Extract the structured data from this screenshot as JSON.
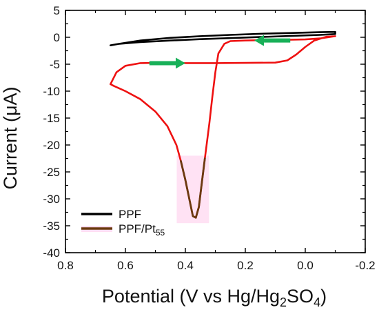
{
  "chart_data": {
    "type": "line",
    "xlabel": {
      "text": "Potential (V vs Hg/Hg",
      "sub1": "2",
      "mid": "SO",
      "sub2": "4",
      "end": ")"
    },
    "ylabel": "Current (μA)",
    "xlim": [
      0.8,
      -0.2
    ],
    "ylim": [
      -40,
      5
    ],
    "x_reversed": true,
    "x_ticks": [
      0.8,
      0.6,
      0.4,
      0.2,
      0.0,
      -0.2
    ],
    "x_tick_labels": [
      "0.8",
      "0.6",
      "0.4",
      "0.2",
      "0.0",
      "-0.2"
    ],
    "y_ticks": [
      5,
      0,
      -5,
      -10,
      -15,
      -20,
      -25,
      -30,
      -35,
      -40
    ],
    "y_tick_labels": [
      "5",
      "0",
      "-5",
      "-10",
      "-15",
      "-20",
      "-25",
      "-30",
      "-35",
      "-40"
    ],
    "grid": false,
    "legend_position": "bottom-left",
    "series": [
      {
        "name": "PPF",
        "color": "#000000",
        "points": [
          [
            0.65,
            -1.5
          ],
          [
            0.62,
            -1.2
          ],
          [
            0.55,
            -0.6
          ],
          [
            0.45,
            -0.1
          ],
          [
            0.35,
            0.2
          ],
          [
            0.25,
            0.45
          ],
          [
            0.15,
            0.65
          ],
          [
            0.05,
            0.8
          ],
          [
            -0.05,
            0.95
          ],
          [
            -0.1,
            1.0
          ],
          [
            -0.1,
            0.6
          ],
          [
            -0.05,
            0.45
          ],
          [
            0.05,
            0.25
          ],
          [
            0.15,
            0.05
          ],
          [
            0.25,
            -0.15
          ],
          [
            0.35,
            -0.35
          ],
          [
            0.45,
            -0.6
          ],
          [
            0.55,
            -0.9
          ],
          [
            0.62,
            -1.2
          ],
          [
            0.65,
            -1.5
          ]
        ]
      },
      {
        "name": "PPF/Pt",
        "name_sub": "55",
        "color": "#ee1111",
        "peak_color": "#6b3a10",
        "points": [
          [
            -0.1,
            0.2
          ],
          [
            -0.07,
            0.1
          ],
          [
            -0.03,
            -0.6
          ],
          [
            0.0,
            -1.8
          ],
          [
            0.03,
            -3.2
          ],
          [
            0.06,
            -4.3
          ],
          [
            0.1,
            -4.7
          ],
          [
            0.2,
            -4.75
          ],
          [
            0.3,
            -4.8
          ],
          [
            0.4,
            -4.8
          ],
          [
            0.5,
            -4.75
          ],
          [
            0.55,
            -4.8
          ],
          [
            0.6,
            -5.3
          ],
          [
            0.63,
            -6.5
          ],
          [
            0.65,
            -8.7
          ],
          [
            0.64,
            -9.0
          ],
          [
            0.6,
            -10.0
          ],
          [
            0.55,
            -11.5
          ],
          [
            0.5,
            -13.8
          ],
          [
            0.46,
            -16.5
          ],
          [
            0.43,
            -20.0
          ],
          [
            0.415,
            -23.0
          ],
          [
            0.4,
            -26.5
          ],
          [
            0.385,
            -30.5
          ],
          [
            0.375,
            -33.2
          ],
          [
            0.365,
            -33.5
          ],
          [
            0.355,
            -31.5
          ],
          [
            0.345,
            -27.0
          ],
          [
            0.335,
            -22.5
          ],
          [
            0.32,
            -16.0
          ],
          [
            0.31,
            -11.0
          ],
          [
            0.3,
            -6.5
          ],
          [
            0.29,
            -3.0
          ],
          [
            0.27,
            -1.2
          ],
          [
            0.25,
            -0.7
          ],
          [
            0.2,
            -0.6
          ],
          [
            0.1,
            -0.5
          ],
          [
            0.0,
            -0.4
          ],
          [
            -0.05,
            -0.2
          ],
          [
            -0.1,
            0.2
          ]
        ],
        "peak_range": [
          -22.5,
          -34
        ]
      }
    ],
    "annotations": [
      {
        "kind": "arrow",
        "direction": "right",
        "color": "#18b058",
        "x_start": 0.52,
        "x_end": 0.4,
        "y": -4.8
      },
      {
        "kind": "arrow",
        "direction": "left",
        "color": "#18b058",
        "x_start": 0.05,
        "x_end": 0.17,
        "y": -0.6
      }
    ]
  }
}
